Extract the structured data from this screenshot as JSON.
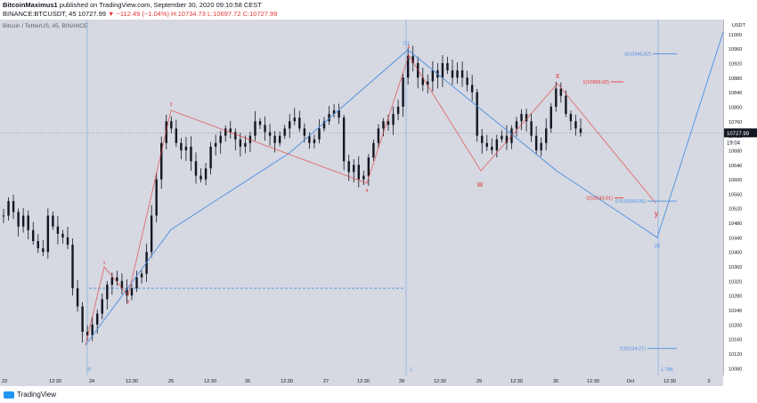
{
  "header": {
    "author": "BitcoinMaximus1",
    "published": " published on TradingView.com, September 30, 2020 09:10:58 CEST",
    "symbol": "BINANCE:BTCUSDT, 45",
    "ohlc_prefix": "10727.99",
    "change": "▼ −112.49 (−1.04%)",
    "ohlc": "H:10734.73 L:10697.72 C:10727.99"
  },
  "panel_title": "Bitcoin / TetherUS, 45, BINANCE",
  "footer": {
    "brand": "TradingView"
  },
  "colors": {
    "bg": "#d6d8e2",
    "blue": "#4a90e2",
    "red": "#e53935",
    "candle": "#131722"
  },
  "chart_data": {
    "type": "candlestick",
    "y_unit": "USDT",
    "ylim": [
      10060,
      11040
    ],
    "y_ticks": [
      10080,
      10120,
      10160,
      10200,
      10240,
      10280,
      10320,
      10360,
      10400,
      10440,
      10480,
      10520,
      10560,
      10600,
      10640,
      10680,
      10720,
      10760,
      10800,
      10840,
      10880,
      10920,
      10960,
      11000
    ],
    "x_ticks": [
      "23",
      "12:30",
      "24",
      "12:30",
      "25",
      "12:30",
      "26",
      "12:30",
      "27",
      "12:30",
      "28",
      "12:30",
      "29",
      "12:30",
      "30",
      "12:30",
      "Oct",
      "12:30",
      "3"
    ],
    "last_price": "10727.99",
    "countdown": "19:04",
    "path_closes": [
      10500,
      10540,
      10510,
      10470,
      10500,
      10460,
      10430,
      10410,
      10400,
      10500,
      10470,
      10450,
      10440,
      10420,
      10300,
      10250,
      10180,
      10170,
      10200,
      10230,
      10270,
      10310,
      10330,
      10320,
      10300,
      10280,
      10300,
      10330,
      10340,
      10400,
      10500,
      10600,
      10700,
      10760,
      10740,
      10700,
      10680,
      10690,
      10650,
      10610,
      10600,
      10630,
      10690,
      10700,
      10720,
      10740,
      10730,
      10710,
      10690,
      10700,
      10720,
      10760,
      10750,
      10730,
      10720,
      10700,
      10720,
      10740,
      10760,
      10770,
      10740,
      10720,
      10700,
      10710,
      10740,
      10760,
      10780,
      10790,
      10770,
      10650,
      10620,
      10640,
      10600,
      10610,
      10660,
      10700,
      10740,
      10760,
      10750,
      10780,
      10800,
      10880,
      10940,
      10920,
      10880,
      10860,
      10870,
      10900,
      10880,
      10920,
      10900,
      10880,
      10900,
      10880,
      10860,
      10840,
      10720,
      10700,
      10690,
      10680,
      10710,
      10720,
      10700,
      10740,
      10760,
      10780,
      10760,
      10720,
      10680,
      10700,
      10740,
      10800,
      10850,
      10830,
      10780,
      10760,
      10740,
      10727.99
    ],
    "wave_labels": [
      {
        "text": "1",
        "series": "red"
      },
      {
        "text": "2",
        "series": "red"
      },
      {
        "text": "3",
        "series": "red"
      },
      {
        "text": "4",
        "series": "red"
      },
      {
        "text": "5",
        "series": "red"
      },
      {
        "text": "w",
        "series": "red"
      },
      {
        "text": "x",
        "series": "red"
      },
      {
        "text": "y",
        "series": "red"
      },
      {
        "text": "0",
        "series": "blue"
      },
      {
        "text": "1",
        "series": "blue"
      },
      {
        "text": "(1)",
        "series": "blue"
      },
      {
        "text": "(2)",
        "series": "blue"
      },
      {
        "text": "1.786",
        "series": "blue"
      }
    ],
    "fib_levels": [
      {
        "label": "0(10945.82)",
        "value": 10945.82,
        "series": "blue"
      },
      {
        "label": "1(10868.60)",
        "value": 10868.6,
        "series": "red"
      },
      {
        "label": "0(10549.01)",
        "value": 10549.01,
        "series": "red"
      },
      {
        "label": "0.5(10540.05)",
        "value": 10540.05,
        "series": "blue"
      },
      {
        "label": "1(10134.27)",
        "value": 10134.27,
        "series": "blue"
      }
    ],
    "dashed_level": 10300
  }
}
